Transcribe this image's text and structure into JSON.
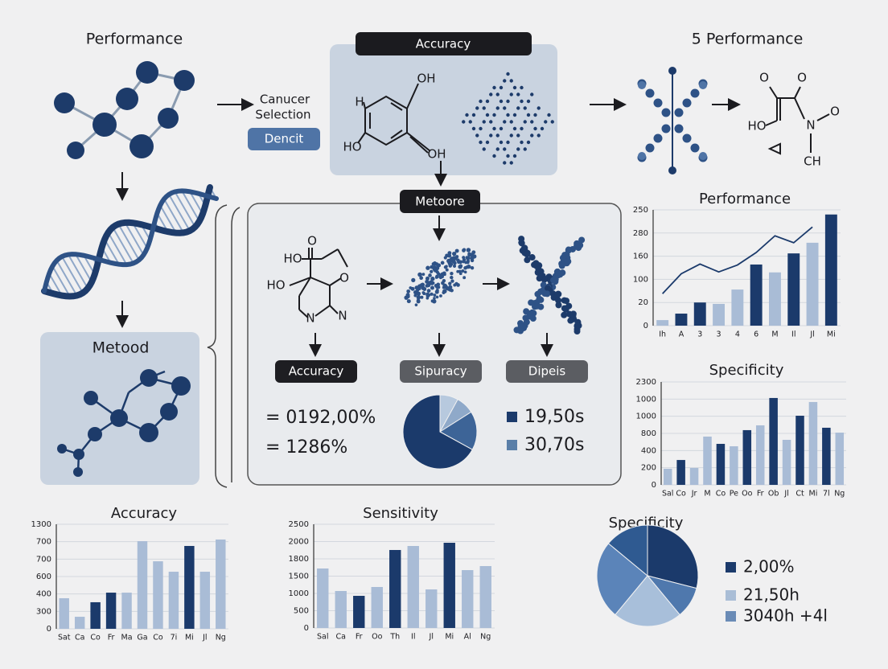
{
  "header": {
    "performance_left": "Performance",
    "canucer": "Canucer",
    "selection": "Selection",
    "dencit": "Dencit",
    "accuracy_box": "Accuracy",
    "performance_right": "5 Performance"
  },
  "molecule_top": [
    "H",
    "OH",
    "HO",
    "OH"
  ],
  "molecule_right": [
    "O",
    "O",
    "HO",
    "N",
    "O",
    "CH"
  ],
  "method_panel": "Metood",
  "method_box": {
    "title": "Metoore",
    "molecule": [
      "O",
      "HO",
      "O",
      "HO",
      "N",
      "N"
    ],
    "pills": [
      "Accuracy",
      "Sipuracy",
      "Dipeis"
    ],
    "stats": [
      "= 0192,00%",
      "= 1286%"
    ]
  },
  "chart_data": [
    {
      "type": "bar",
      "title": "Performance",
      "categories": [
        "Ih",
        "A",
        "3",
        "3",
        "4",
        "6",
        "M",
        "Il",
        "Jl",
        "Mi"
      ],
      "values": [
        12,
        26,
        50,
        47,
        78,
        132,
        115,
        156,
        179,
        240
      ],
      "colors": [
        "#a9bcd6",
        "#1b3a6b",
        "#1b3a6b",
        "#a9bcd6",
        "#a9bcd6",
        "#1b3a6b",
        "#a9bcd6",
        "#1b3a6b",
        "#a9bcd6",
        "#1b3a6b"
      ],
      "line_values": [
        69,
        112,
        133,
        116,
        131,
        158,
        194,
        179,
        213,
        null
      ],
      "line_color": "#1b3a6b",
      "ylim": [
        0,
        250
      ],
      "yticks": [
        0,
        {
          "value": 50,
          "label": "20"
        },
        100,
        {
          "value": 150,
          "label": "160"
        },
        {
          "value": 200,
          "label": "280"
        },
        250
      ],
      "grid": true
    },
    {
      "type": "bar",
      "title": "Specificity",
      "categories": [
        "Sal",
        "Co",
        "Jr",
        "M",
        "Co",
        "Pe",
        "Oo",
        "Fr",
        "Ob",
        "Jl",
        "Ct",
        "Mi",
        "7l",
        "Ng"
      ],
      "values": [
        188,
        290,
        197,
        563,
        478,
        450,
        638,
        694,
        1013,
        525,
        806,
        966,
        666,
        609
      ],
      "colors": [
        "#a9bcd6",
        "#1b3a6b",
        "#a9bcd6",
        "#a9bcd6",
        "#1b3a6b",
        "#a9bcd6",
        "#1b3a6b",
        "#a9bcd6",
        "#1b3a6b",
        "#a9bcd6",
        "#1b3a6b",
        "#a9bcd6",
        "#1b3a6b",
        "#a9bcd6"
      ],
      "ylim": [
        0,
        1200
      ],
      "yticks": [
        0,
        200,
        400,
        {
          "value": 600,
          "label": "800"
        },
        {
          "value": 800,
          "label": "1000"
        },
        1000,
        {
          "value": 1200,
          "label": "2300"
        }
      ],
      "grid": true
    },
    {
      "type": "bar",
      "title": "Accuracy",
      "categories": [
        "Sat",
        "Ca",
        "Co",
        "Fr",
        "Ma",
        "Ga",
        "Co",
        "7i",
        "Mi",
        "Jl",
        "Ng"
      ],
      "values": [
        351,
        138,
        305,
        415,
        415,
        1006,
        775,
        655,
        951,
        655,
        1025
      ],
      "colors": [
        "#a9bcd6",
        "#a9bcd6",
        "#1b3a6b",
        "#1b3a6b",
        "#a9bcd6",
        "#a9bcd6",
        "#a9bcd6",
        "#a9bcd6",
        "#1b3a6b",
        "#a9bcd6",
        "#a9bcd6"
      ],
      "ylim": [
        0,
        1200
      ],
      "yticks": [
        0,
        {
          "value": 200,
          "label": "300"
        },
        400,
        600,
        {
          "value": 800,
          "label": "700"
        },
        {
          "value": 1000,
          "label": "700"
        },
        {
          "value": 1200,
          "label": "1300"
        }
      ],
      "grid": true
    },
    {
      "type": "bar",
      "title": "Sensitivity",
      "categories": [
        "Sal",
        "Ca",
        "Fr",
        "Oo",
        "Th",
        "Il",
        "Jl",
        "Mi",
        "Al",
        "Ng"
      ],
      "values": [
        1721,
        1070,
        930,
        1186,
        2256,
        2372,
        1116,
        2465,
        1674,
        1791
      ],
      "colors": [
        "#a9bcd6",
        "#a9bcd6",
        "#1b3a6b",
        "#a9bcd6",
        "#1b3a6b",
        "#a9bcd6",
        "#a9bcd6",
        "#1b3a6b",
        "#a9bcd6",
        "#a9bcd6"
      ],
      "ylim": [
        0,
        3000
      ],
      "yticks": [
        0,
        500,
        1000,
        1500,
        {
          "value": 2000,
          "label": "1800"
        },
        {
          "value": 2500,
          "label": "2000"
        },
        {
          "value": 3000,
          "label": "2500"
        }
      ],
      "grid": true
    },
    {
      "type": "pie",
      "values": [
        8,
        8,
        17,
        67
      ],
      "colors": [
        "#b7c9de",
        "#8fa9c9",
        "#3d6497",
        "#1b3a6b"
      ],
      "legend": [
        "19,50s",
        "30,70s"
      ],
      "legend_colors": [
        "#1b3a6b",
        "#5a7fa8"
      ]
    },
    {
      "type": "pie",
      "title": "Specificity",
      "values": [
        29,
        10,
        22,
        25,
        14
      ],
      "colors": [
        "#1b3a6b",
        "#4f78ad",
        "#a8bfda",
        "#5b84b9",
        "#2f5a91"
      ],
      "legend": [
        "2,00%",
        "21,50h",
        "3040h +4l"
      ],
      "legend_colors": [
        "#1b3a6b",
        "#a9bdd6",
        "#6a8bb6"
      ]
    }
  ]
}
